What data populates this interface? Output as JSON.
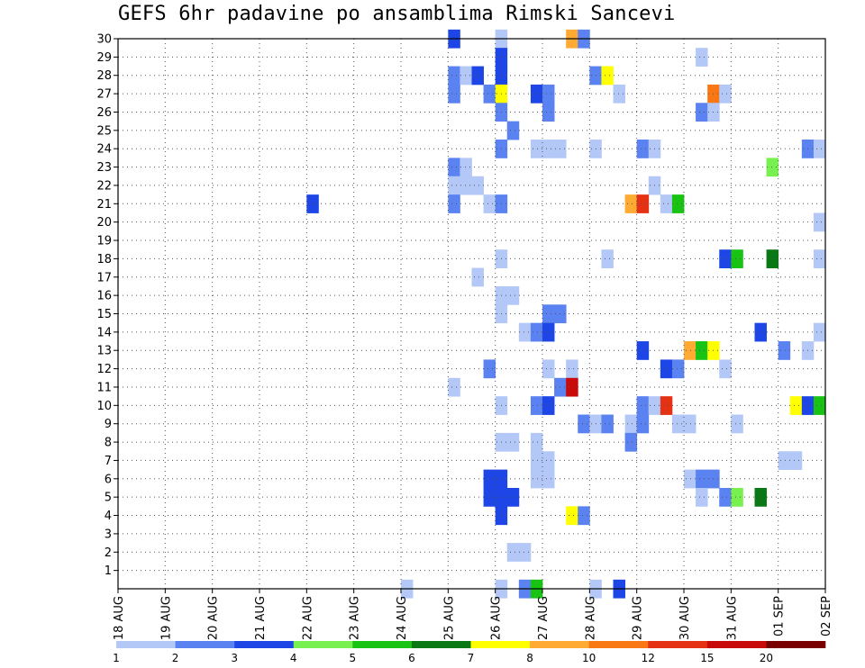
{
  "chart_data": {
    "type": "heatmap",
    "title": "GEFS 6hr padavine po ansamblima Rimski Sancevi",
    "xlabel": "",
    "ylabel": "",
    "x_tick_labels": [
      "18 AUG",
      "19 AUG",
      "20 AUG",
      "21 AUG",
      "22 AUG",
      "23 AUG",
      "24 AUG",
      "25 AUG",
      "26 AUG",
      "27 AUG",
      "28 AUG",
      "29 AUG",
      "30 AUG",
      "31 AUG",
      "01 SEP",
      "02 SEP"
    ],
    "x_range_days": [
      0,
      15
    ],
    "steps_per_day": 4,
    "y_tick_labels": [
      "1",
      "2",
      "3",
      "4",
      "5",
      "6",
      "7",
      "8",
      "9",
      "10",
      "11",
      "12",
      "13",
      "14",
      "15",
      "16",
      "17",
      "18",
      "19",
      "20",
      "21",
      "22",
      "23",
      "24",
      "25",
      "26",
      "27",
      "28",
      "29",
      "30"
    ],
    "y_range_members": [
      0,
      30
    ],
    "grid": "dotted",
    "color_levels": [
      1,
      2,
      3,
      4,
      5,
      6,
      7,
      8,
      10,
      12,
      15,
      20
    ],
    "color_scale": [
      "#b4c8f8",
      "#5a82f0",
      "#1e46e6",
      "#78f050",
      "#19c314",
      "#0a7814",
      "#ffff00",
      "#ffaa32",
      "#fa7814",
      "#e63214",
      "#c80a0a",
      "#780000"
    ],
    "legend_labels": [
      "1",
      "2",
      "3",
      "4",
      "5",
      "6",
      "7",
      "8",
      "10",
      "12",
      "15",
      "20"
    ],
    "cells": [
      [
        25.0,
        30,
        3
      ],
      [
        25.0,
        28,
        2
      ],
      [
        25.0,
        27,
        2
      ],
      [
        25.0,
        23,
        2
      ],
      [
        25.0,
        22,
        1
      ],
      [
        25.0,
        21,
        2
      ],
      [
        25.0,
        11,
        1
      ],
      [
        25.25,
        28,
        1
      ],
      [
        25.25,
        23,
        1
      ],
      [
        25.25,
        22,
        1
      ],
      [
        25.5,
        28,
        3
      ],
      [
        25.5,
        22,
        1
      ],
      [
        25.5,
        17,
        1
      ],
      [
        25.75,
        27,
        2
      ],
      [
        25.75,
        21,
        1
      ],
      [
        25.75,
        12,
        2
      ],
      [
        25.75,
        6,
        3
      ],
      [
        25.75,
        5,
        3
      ],
      [
        26.0,
        30,
        1
      ],
      [
        26.0,
        29,
        3
      ],
      [
        26.0,
        28,
        3
      ],
      [
        26.0,
        27,
        7
      ],
      [
        26.0,
        26,
        2
      ],
      [
        26.0,
        24,
        2
      ],
      [
        26.0,
        21,
        2
      ],
      [
        26.0,
        18,
        1
      ],
      [
        26.0,
        16,
        1
      ],
      [
        26.0,
        15,
        1
      ],
      [
        26.0,
        10,
        1
      ],
      [
        26.0,
        8,
        1
      ],
      [
        26.0,
        6,
        3
      ],
      [
        26.0,
        5,
        3
      ],
      [
        26.0,
        4,
        3
      ],
      [
        26.0,
        0,
        1
      ],
      [
        26.25,
        25,
        2
      ],
      [
        26.25,
        16,
        1
      ],
      [
        26.25,
        8,
        1
      ],
      [
        26.25,
        5,
        3
      ],
      [
        26.25,
        2,
        1
      ],
      [
        26.5,
        14,
        1
      ],
      [
        26.5,
        2,
        1
      ],
      [
        26.5,
        0,
        2
      ],
      [
        26.75,
        27,
        3
      ],
      [
        26.75,
        24,
        1
      ],
      [
        26.75,
        14,
        2
      ],
      [
        26.75,
        10,
        2
      ],
      [
        26.75,
        8,
        1
      ],
      [
        26.75,
        7,
        1
      ],
      [
        26.75,
        6,
        1
      ],
      [
        26.75,
        0,
        5
      ],
      [
        27.0,
        27,
        2
      ],
      [
        27.0,
        26,
        2
      ],
      [
        27.0,
        24,
        1
      ],
      [
        27.0,
        15,
        2
      ],
      [
        27.0,
        14,
        3
      ],
      [
        27.0,
        12,
        1
      ],
      [
        27.0,
        10,
        3
      ],
      [
        27.0,
        7,
        1
      ],
      [
        27.0,
        6,
        1
      ],
      [
        27.25,
        24,
        1
      ],
      [
        27.25,
        15,
        2
      ],
      [
        27.25,
        11,
        2
      ],
      [
        27.5,
        30,
        9
      ],
      [
        27.5,
        12,
        1
      ],
      [
        27.5,
        11,
        15
      ],
      [
        27.5,
        4,
        7
      ],
      [
        27.75,
        30,
        2
      ],
      [
        27.75,
        9,
        2
      ],
      [
        27.75,
        4,
        2
      ],
      [
        28.0,
        28,
        2
      ],
      [
        28.0,
        24,
        1
      ],
      [
        28.0,
        9,
        1
      ],
      [
        28.0,
        0,
        1
      ],
      [
        28.25,
        28,
        7
      ],
      [
        28.25,
        18,
        1
      ],
      [
        28.25,
        9,
        2
      ],
      [
        28.5,
        27,
        1
      ],
      [
        28.5,
        0,
        3
      ],
      [
        28.75,
        21,
        8
      ],
      [
        28.75,
        9,
        1
      ],
      [
        28.75,
        8,
        2
      ],
      [
        29.0,
        24,
        2
      ],
      [
        29.0,
        21,
        12
      ],
      [
        29.0,
        13,
        3
      ],
      [
        29.0,
        10,
        2
      ],
      [
        29.0,
        9,
        2
      ],
      [
        29.25,
        24,
        1
      ],
      [
        29.25,
        22,
        1
      ],
      [
        29.25,
        10,
        1
      ],
      [
        29.5,
        21,
        1
      ],
      [
        29.5,
        12,
        3
      ],
      [
        29.5,
        10,
        12
      ],
      [
        29.75,
        21,
        5
      ],
      [
        29.75,
        12,
        2
      ],
      [
        29.75,
        9,
        1
      ],
      [
        30.0,
        13,
        8
      ],
      [
        30.0,
        9,
        1
      ],
      [
        30.0,
        6,
        1
      ],
      [
        30.25,
        29,
        1
      ],
      [
        30.25,
        26,
        2
      ],
      [
        30.25,
        13,
        5
      ],
      [
        30.25,
        6,
        2
      ],
      [
        30.25,
        5,
        1
      ],
      [
        30.5,
        27,
        10
      ],
      [
        30.5,
        26,
        1
      ],
      [
        30.5,
        13,
        7
      ],
      [
        30.5,
        6,
        2
      ],
      [
        30.75,
        27,
        1
      ],
      [
        30.75,
        18,
        3
      ],
      [
        30.75,
        12,
        1
      ],
      [
        30.75,
        5,
        2
      ],
      [
        31.0,
        18,
        5
      ],
      [
        31.0,
        9,
        1
      ],
      [
        31.0,
        5,
        4
      ],
      [
        31.5,
        14,
        3
      ],
      [
        31.5,
        5,
        6
      ],
      [
        31.75,
        23,
        4
      ],
      [
        31.75,
        18,
        6
      ],
      [
        32.0,
        13,
        2
      ],
      [
        32.0,
        7,
        1
      ],
      [
        32.25,
        10,
        7
      ],
      [
        32.25,
        7,
        1
      ],
      [
        32.5,
        24,
        2
      ],
      [
        32.5,
        13,
        1
      ],
      [
        32.5,
        10,
        3
      ],
      [
        32.75,
        24,
        1
      ],
      [
        32.75,
        20,
        1
      ],
      [
        32.75,
        18,
        1
      ],
      [
        32.75,
        14,
        1
      ],
      [
        32.75,
        10,
        5
      ],
      [
        22.0,
        21,
        3
      ],
      [
        24.0,
        0,
        1
      ]
    ],
    "legend_placement": "bottom"
  }
}
